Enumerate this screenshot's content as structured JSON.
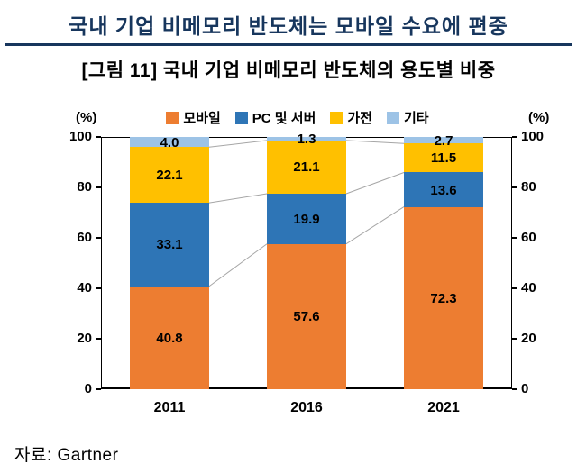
{
  "header": {
    "title": "국내 기업 비메모리 반도체는 모바일 수요에 편중",
    "subtitle": "[그림 11] 국내 기업 비메모리 반도체의 용도별 비중",
    "accent_color": "#17365D"
  },
  "source": "자료: Gartner",
  "chart_data": {
    "type": "bar",
    "stacked": true,
    "title": "국내 기업 비메모리 반도체의 용도별 비중",
    "unit_label": "(%)",
    "categories": [
      "2011",
      "2016",
      "2021"
    ],
    "series": [
      {
        "name": "모바일",
        "color": "#ED7D31",
        "values": [
          40.8,
          57.6,
          72.3
        ]
      },
      {
        "name": "PC 및 서버",
        "color": "#2E75B6",
        "values": [
          33.1,
          19.9,
          13.6
        ]
      },
      {
        "name": "가전",
        "color": "#FFC000",
        "values": [
          22.1,
          21.1,
          11.5
        ]
      },
      {
        "name": "기타",
        "color": "#9DC3E6",
        "values": [
          4.0,
          1.3,
          2.7
        ]
      }
    ],
    "ylim": [
      0,
      100
    ],
    "yticks": [
      0,
      20,
      40,
      60,
      80,
      100
    ],
    "legend_position": "top",
    "grid": false,
    "connector_lines": true,
    "connector_color": "#A6A6A6"
  }
}
